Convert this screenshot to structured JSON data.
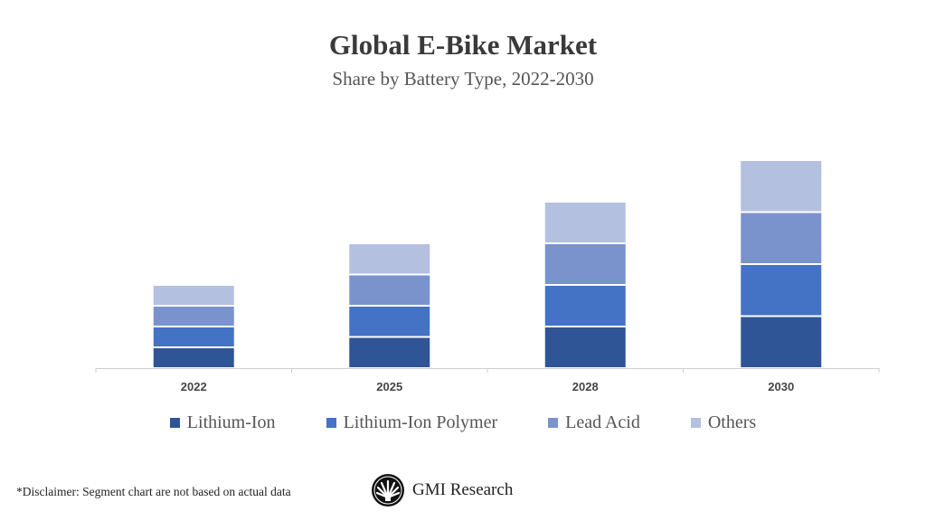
{
  "chart_data": {
    "type": "bar",
    "stacked": true,
    "title": "Global E-Bike Market",
    "subtitle": "Share by Battery Type, 2022-2030",
    "xlabel": "",
    "ylabel": "",
    "categories": [
      "2022",
      "2025",
      "2028",
      "2030"
    ],
    "series": [
      {
        "name": "Lithium-Ion",
        "color": "#2f5597",
        "values": [
          2,
          3,
          4,
          5
        ]
      },
      {
        "name": "Lithium-Ion Polymer",
        "color": "#4472c4",
        "values": [
          2,
          3,
          4,
          5
        ]
      },
      {
        "name": "Lead Acid",
        "color": "#7a93cd",
        "values": [
          2,
          3,
          4,
          5
        ]
      },
      {
        "name": "Others",
        "color": "#b4c0e0",
        "values": [
          2,
          3,
          4,
          5
        ]
      }
    ],
    "ylim": [
      0,
      20
    ],
    "y_axis_visible": false,
    "grid": false,
    "legend_position": "bottom"
  },
  "footer": {
    "disclaimer": "*Disclaimer:  Segment chart are not based on actual data",
    "brand": "GMI Research"
  }
}
